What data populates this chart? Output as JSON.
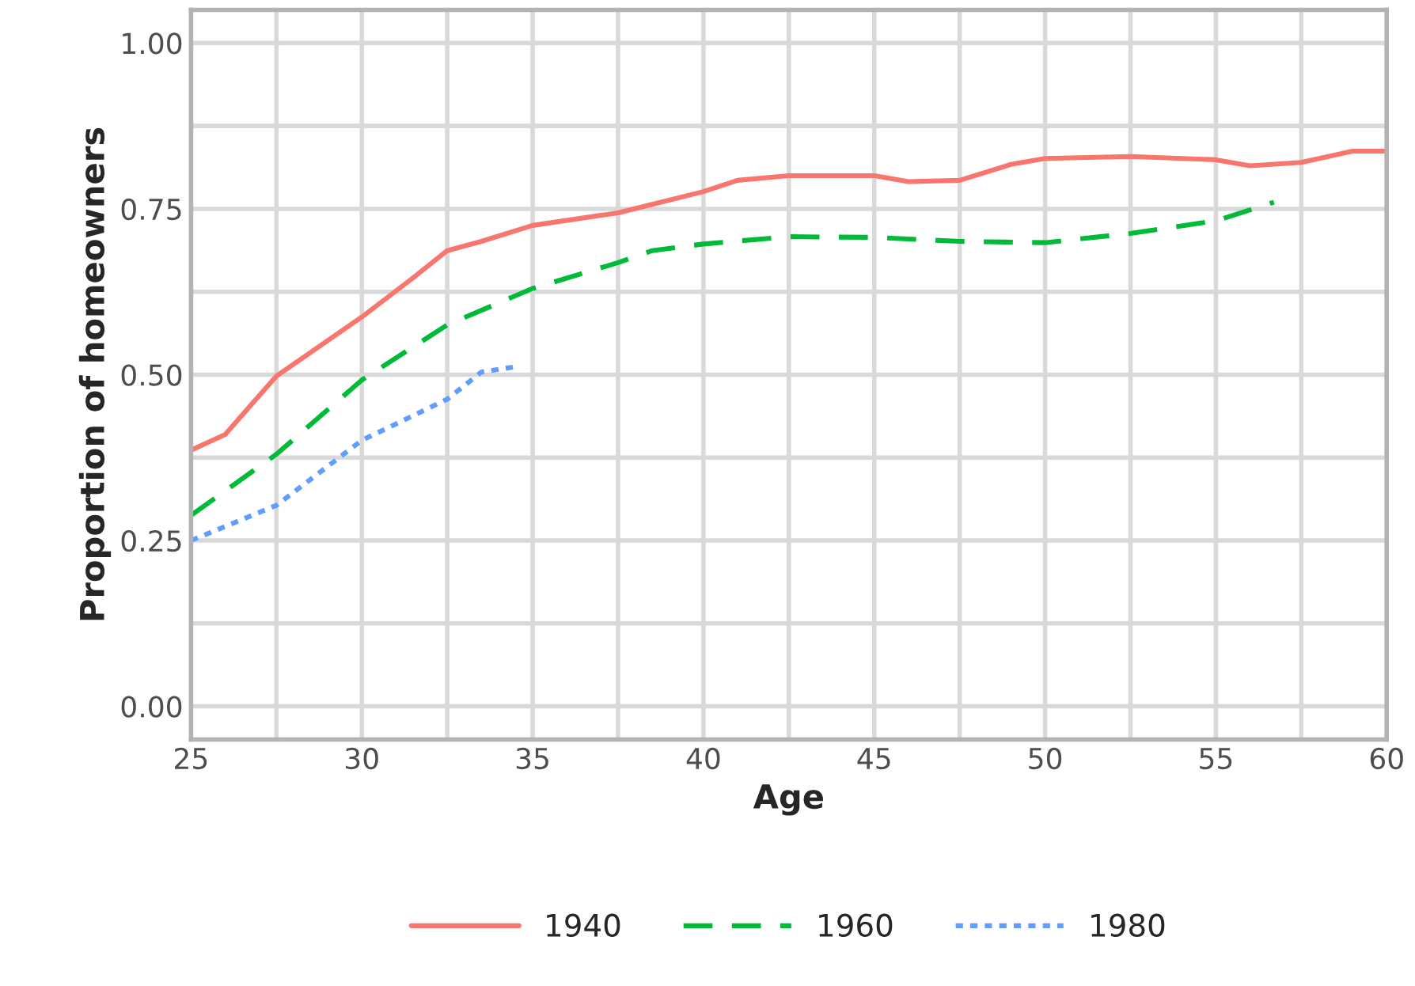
{
  "chart_data": {
    "type": "line",
    "xlabel": "Age",
    "ylabel": "Proportion of homeowners",
    "xlim": [
      25,
      60
    ],
    "xticks": [
      25,
      30,
      35,
      40,
      45,
      50,
      55,
      60
    ],
    "ylim": [
      -0.05,
      1.05
    ],
    "yticks": [
      {
        "value": 0,
        "label": "0.00"
      },
      {
        "value": 0.25,
        "label": "0.25"
      },
      {
        "value": 0.5,
        "label": "0.50"
      },
      {
        "value": 0.75,
        "label": "0.75"
      },
      {
        "value": 1,
        "label": "1.00"
      }
    ],
    "grid": true,
    "legend": "bottom",
    "series": [
      {
        "name": "1940",
        "color": "#f8766d",
        "line_style": "solid",
        "x": [
          25,
          26,
          27.5,
          30,
          31.5,
          32.5,
          33.5,
          35,
          37.5,
          40,
          41,
          42.5,
          45,
          46,
          47.5,
          49,
          50,
          52.5,
          55,
          56,
          57.5,
          59,
          60
        ],
        "values": [
          0.386,
          0.41,
          0.498,
          0.587,
          0.646,
          0.687,
          0.701,
          0.725,
          0.744,
          0.776,
          0.793,
          0.8,
          0.8,
          0.791,
          0.793,
          0.817,
          0.826,
          0.829,
          0.824,
          0.815,
          0.82,
          0.837,
          0.837
        ]
      },
      {
        "name": "1960",
        "color": "#00ba38",
        "line_style": "dashed",
        "x": [
          25,
          27.5,
          30,
          32.5,
          35,
          37.5,
          38.5,
          40,
          42.5,
          45,
          47.5,
          50,
          52.5,
          55,
          56.7
        ],
        "values": [
          0.288,
          0.38,
          0.492,
          0.575,
          0.63,
          0.669,
          0.687,
          0.697,
          0.708,
          0.707,
          0.701,
          0.699,
          0.713,
          0.732,
          0.76
        ]
      },
      {
        "name": "1980",
        "color": "#619cff",
        "line_style": "dotted",
        "x": [
          25,
          27.5,
          30,
          32.5,
          33.5,
          34.5
        ],
        "values": [
          0.25,
          0.303,
          0.401,
          0.463,
          0.504,
          0.512
        ]
      }
    ]
  }
}
